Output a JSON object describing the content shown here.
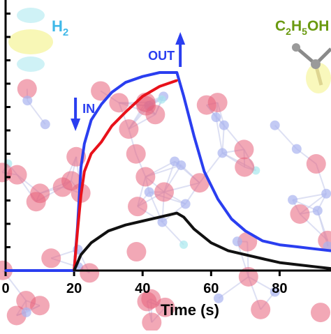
{
  "chart_data": {
    "type": "line",
    "xlabel": "Time (s)",
    "ylabel": "",
    "xlim": [
      0,
      95
    ],
    "ylim": [
      0,
      1.05
    ],
    "x_ticks": [
      0,
      20,
      40,
      60,
      80
    ],
    "x_tick_labels": [
      "0",
      "20",
      "40",
      "60",
      "80"
    ],
    "grid": false,
    "series": [
      {
        "color": "#2a3ef0",
        "x": [
          0,
          20,
          21,
          22,
          23,
          25,
          28,
          31,
          35,
          40,
          45,
          50,
          52,
          55,
          58,
          62,
          66,
          70,
          75,
          80,
          85,
          90,
          95
        ],
        "y": [
          0,
          0,
          0.22,
          0.52,
          0.64,
          0.76,
          0.84,
          0.9,
          0.95,
          0.98,
          1.0,
          1.0,
          0.88,
          0.68,
          0.5,
          0.36,
          0.26,
          0.2,
          0.15,
          0.13,
          0.12,
          0.11,
          0.1
        ]
      },
      {
        "color": "#e8111a",
        "x": [
          20,
          21,
          22,
          23,
          25,
          28,
          31,
          35,
          40,
          45,
          50
        ],
        "y": [
          0,
          0.2,
          0.38,
          0.5,
          0.59,
          0.65,
          0.73,
          0.8,
          0.88,
          0.93,
          0.96
        ]
      },
      {
        "color": "#111111",
        "x": [
          20,
          22,
          25,
          30,
          35,
          40,
          45,
          50,
          52,
          55,
          60,
          65,
          70,
          75,
          80,
          85,
          90,
          95
        ],
        "y": [
          0,
          0.08,
          0.14,
          0.2,
          0.23,
          0.25,
          0.27,
          0.29,
          0.27,
          0.21,
          0.14,
          0.1,
          0.08,
          0.06,
          0.04,
          0.03,
          0.02,
          0.01
        ]
      }
    ],
    "annotations": {
      "in_label": "IN",
      "in_x": 20,
      "out_label": "OUT",
      "out_x": 51
    },
    "molecules": {
      "h2_main": "H",
      "h2_sub": "2",
      "ethanol": [
        "C",
        "2",
        "H",
        "5",
        "OH"
      ]
    },
    "colors": {
      "blue": "#2a3ef0",
      "red": "#e8111a",
      "black": "#111111",
      "h2_text": "#3fb8e8",
      "ethanol_text": "#6a9a10",
      "atom_pink": "#e8607a",
      "atom_lavender": "#a9b4f0",
      "atom_cyan": "#a8e8ee"
    }
  }
}
